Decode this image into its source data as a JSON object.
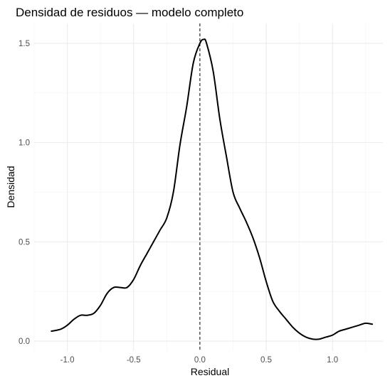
{
  "chart_data": {
    "type": "line",
    "title": "Densidad de residuos — modelo completo",
    "xlabel": "Residual",
    "ylabel": "Densidad",
    "xlim": [
      -1.25,
      1.38
    ],
    "ylim": [
      -0.05,
      1.6
    ],
    "x_ticks": [
      -1.0,
      -0.5,
      0.0,
      0.5,
      1.0
    ],
    "x_tick_labels": [
      "-1.0",
      "-0.5",
      "0.0",
      "0.5",
      "1.0"
    ],
    "y_ticks": [
      0.0,
      0.5,
      1.0,
      1.5
    ],
    "y_tick_labels": [
      "0.0",
      "0.5",
      "1.0",
      "1.5"
    ],
    "grid": true,
    "legend": "none",
    "reference_line": {
      "x": 0.0,
      "style": "dashed",
      "color": "#000000"
    },
    "series": [
      {
        "color": "#000000",
        "x": [
          -1.12,
          -1.05,
          -1.0,
          -0.95,
          -0.9,
          -0.85,
          -0.8,
          -0.75,
          -0.7,
          -0.65,
          -0.6,
          -0.55,
          -0.5,
          -0.45,
          -0.4,
          -0.35,
          -0.3,
          -0.25,
          -0.2,
          -0.15,
          -0.1,
          -0.05,
          0.0,
          0.03,
          0.05,
          0.1,
          0.15,
          0.2,
          0.25,
          0.3,
          0.35,
          0.4,
          0.45,
          0.5,
          0.55,
          0.6,
          0.65,
          0.7,
          0.75,
          0.8,
          0.85,
          0.9,
          0.95,
          1.0,
          1.05,
          1.1,
          1.15,
          1.2,
          1.25,
          1.3
        ],
        "y": [
          0.05,
          0.06,
          0.08,
          0.11,
          0.13,
          0.13,
          0.14,
          0.18,
          0.24,
          0.27,
          0.27,
          0.27,
          0.31,
          0.38,
          0.44,
          0.5,
          0.56,
          0.62,
          0.75,
          0.99,
          1.18,
          1.4,
          1.5,
          1.52,
          1.5,
          1.36,
          1.12,
          0.93,
          0.75,
          0.67,
          0.6,
          0.52,
          0.42,
          0.3,
          0.2,
          0.15,
          0.11,
          0.07,
          0.04,
          0.02,
          0.01,
          0.01,
          0.02,
          0.03,
          0.05,
          0.06,
          0.07,
          0.08,
          0.09,
          0.085
        ]
      }
    ]
  }
}
